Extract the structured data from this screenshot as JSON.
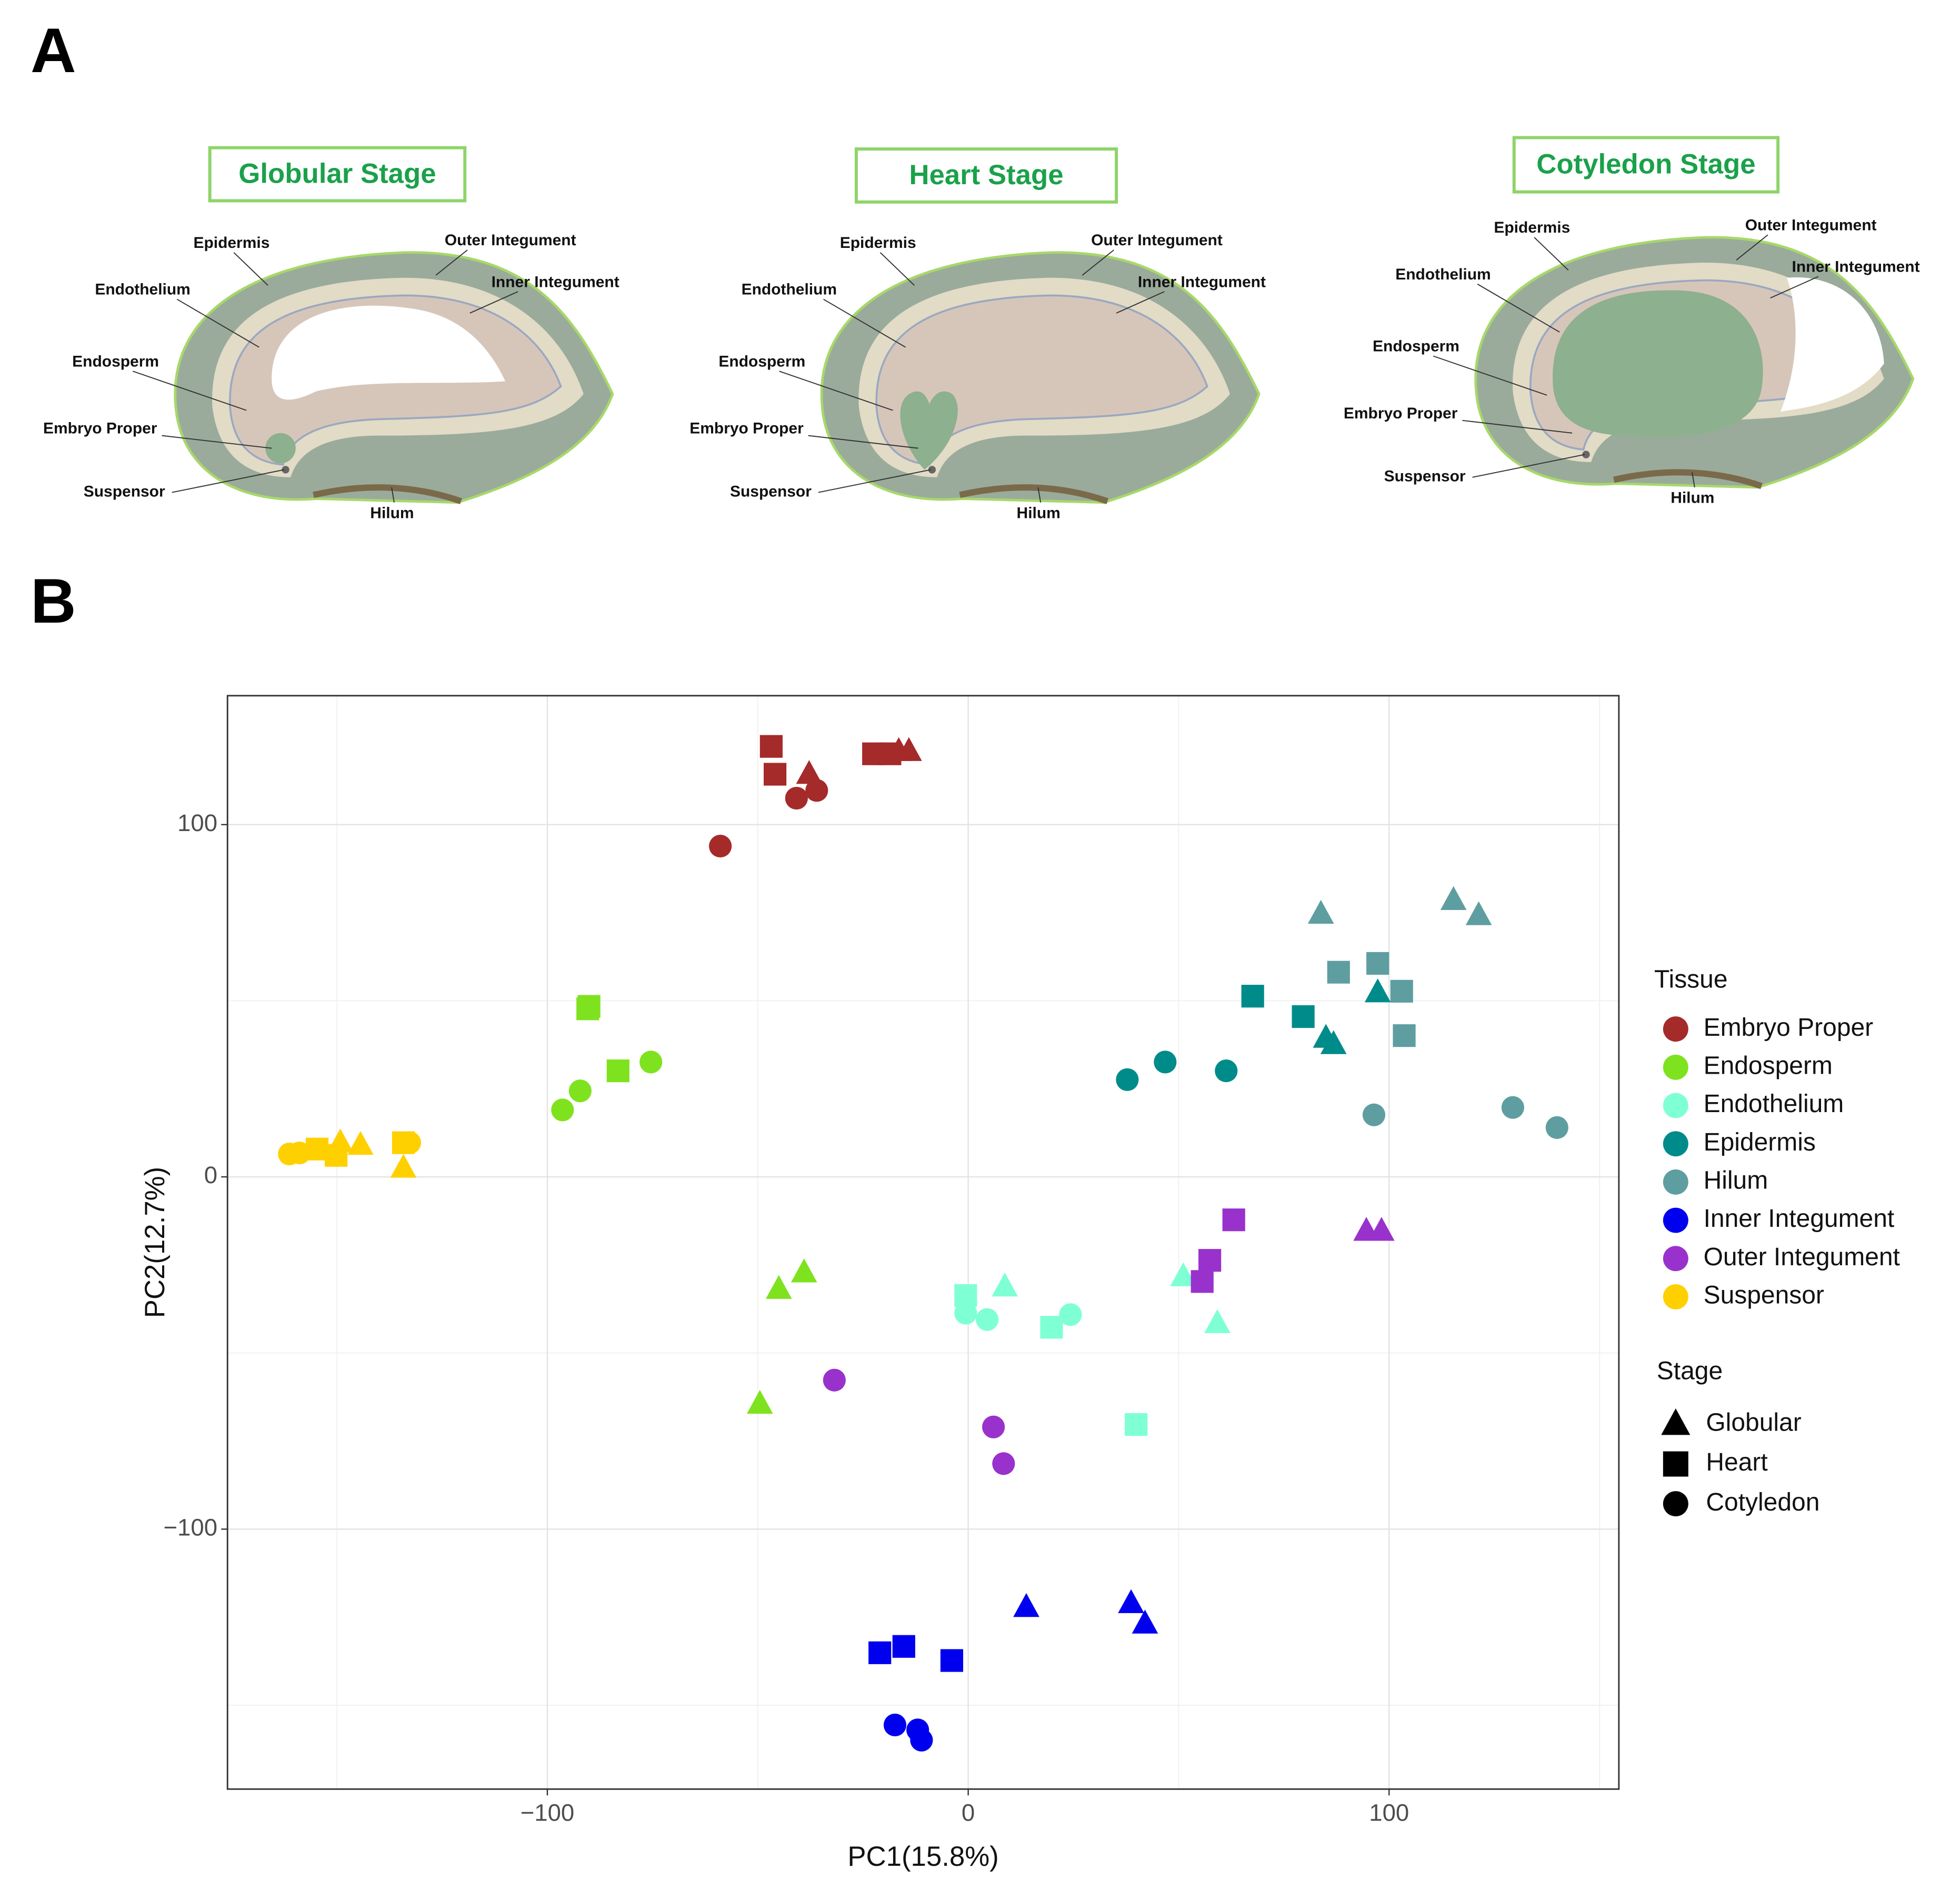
{
  "panel_labels": [
    "A",
    "B"
  ],
  "diagrams": [
    {
      "title": "Globular Stage",
      "labels": [
        "Epidermis",
        "Outer Integument",
        "Inner Integument",
        "Endothelium",
        "Endosperm",
        "Embryo Proper",
        "Suspensor",
        "Hilum"
      ]
    },
    {
      "title": "Heart Stage",
      "labels": [
        "Epidermis",
        "Outer Integument",
        "Inner Integument",
        "Endothelium",
        "Endosperm",
        "Embryo Proper",
        "Suspensor",
        "Hilum"
      ]
    },
    {
      "title": "Cotyledon Stage",
      "labels": [
        "Epidermis",
        "Outer Integument",
        "Inner Integument",
        "Endothelium",
        "Endosperm",
        "Embryo Proper",
        "Suspensor",
        "Hilum"
      ]
    }
  ],
  "chart_data": {
    "type": "scatter",
    "xlabel": "PC1(15.8%)",
    "ylabel": "PC2(12.7%)",
    "xlim": [
      -176,
      154.6
    ],
    "ylim": [
      -173.8,
      136.6
    ],
    "xticks": [
      {
        "value": -100,
        "label": "−100"
      },
      0,
      100
    ],
    "yticks": [
      {
        "value": -100,
        "label": "−100"
      },
      0,
      100
    ],
    "x_minor_grid": [
      -150,
      -50,
      50,
      150
    ],
    "y_minor_grid": [
      -150,
      -50,
      50
    ],
    "grid": true,
    "legend": {
      "title": "Tissue",
      "position": "right"
    },
    "shape_legend": {
      "title": "Stage",
      "items": [
        {
          "name": "Globular",
          "shape": "triangle"
        },
        {
          "name": "Heart",
          "shape": "square"
        },
        {
          "name": "Cotyledon",
          "shape": "circle"
        }
      ]
    },
    "series": [
      {
        "name": "Embryo Proper",
        "color": "#a52a2a",
        "shapes": [
          "square",
          "square",
          "square",
          "square",
          "triangle",
          "triangle",
          "triangle",
          "circle",
          "circle",
          "circle"
        ],
        "x": [
          -46.8,
          -45.9,
          -22.5,
          -18.6,
          -37.8,
          -16.5,
          -14.1,
          -40.8,
          -36,
          -58.9
        ],
        "values": [
          122.2,
          114.3,
          120.1,
          120.1,
          114.3,
          120.8,
          120.8,
          107.5,
          109.7,
          93.9
        ]
      },
      {
        "name": "Endosperm",
        "color": "#7fe21f",
        "shapes": [
          "square",
          "square",
          "square",
          "triangle",
          "triangle",
          "triangle",
          "circle",
          "circle",
          "circle"
        ],
        "x": [
          -90.1,
          -90.4,
          -83.2,
          -45,
          -39,
          -49.5,
          -96.4,
          -92.2,
          -75.4
        ],
        "values": [
          48.4,
          47.7,
          30.1,
          -31.9,
          -27.2,
          -64.5,
          19,
          24.4,
          32.6
        ]
      },
      {
        "name": "Endothelium",
        "color": "#7fffd4",
        "shapes": [
          "square",
          "square",
          "square",
          "triangle",
          "triangle",
          "triangle",
          "circle",
          "circle",
          "circle"
        ],
        "x": [
          -0.6,
          19.8,
          39.9,
          8.7,
          51.1,
          59.2,
          -0.6,
          4.5,
          24.3
        ],
        "values": [
          -33.7,
          -42.7,
          -70.3,
          -31.2,
          -28.3,
          -41.6,
          -38.7,
          -40.5,
          -39.1
        ]
      },
      {
        "name": "Epidermis",
        "color": "#008b8b",
        "shapes": [
          "square",
          "square",
          "triangle",
          "triangle",
          "triangle",
          "circle",
          "circle",
          "circle"
        ],
        "x": [
          67.6,
          79.6,
          97.3,
          85,
          86.8,
          37.8,
          46.8,
          61.3
        ],
        "values": [
          51.3,
          45.5,
          52.3,
          39.4,
          37.6,
          27.6,
          32.6,
          30.1
        ]
      },
      {
        "name": "Hilum",
        "color": "#5f9ea0",
        "shapes": [
          "square",
          "square",
          "square",
          "square",
          "triangle",
          "triangle",
          "triangle",
          "circle",
          "circle",
          "circle"
        ],
        "x": [
          88,
          97.3,
          103,
          103.6,
          83.8,
          115.3,
          121.3,
          96.4,
          129.4,
          139.9
        ],
        "values": [
          58.1,
          60.6,
          52.7,
          40.1,
          74.6,
          78.5,
          74.2,
          17.6,
          19.7,
          14
        ]
      },
      {
        "name": "Inner Integument",
        "color": "#0000ee",
        "shapes": [
          "square",
          "square",
          "square",
          "triangle",
          "triangle",
          "triangle",
          "circle",
          "circle",
          "circle"
        ],
        "x": [
          -21,
          -15.3,
          -3.9,
          13.8,
          38.7,
          42,
          -17.4,
          -12,
          -11.1
        ],
        "values": [
          -135.1,
          -133.3,
          -137.3,
          -122.2,
          -121.1,
          -126.9,
          -155.6,
          -157,
          -159.9
        ]
      },
      {
        "name": "Outer Integument",
        "color": "#9932cc",
        "shapes": [
          "square",
          "square",
          "square",
          "triangle",
          "triangle",
          "circle",
          "circle",
          "circle"
        ],
        "x": [
          63.1,
          57.4,
          55.6,
          94.6,
          98.2,
          -31.8,
          6,
          8.4
        ],
        "values": [
          -12.2,
          -23.7,
          -29.7,
          -15.4,
          -15.4,
          -57.7,
          -71,
          -81.4
        ]
      },
      {
        "name": "Suspensor",
        "color": "#ffd000",
        "shapes": [
          "square",
          "square",
          "square",
          "triangle",
          "triangle",
          "triangle",
          "circle",
          "circle",
          "circle"
        ],
        "x": [
          -154.7,
          -150.2,
          -134.2,
          -149.2,
          -144.4,
          -134.2,
          -161.3,
          -158.9,
          -132.7
        ],
        "values": [
          7.9,
          6.1,
          9.7,
          9.7,
          9,
          2.5,
          6.5,
          6.8,
          9.7
        ]
      }
    ]
  }
}
